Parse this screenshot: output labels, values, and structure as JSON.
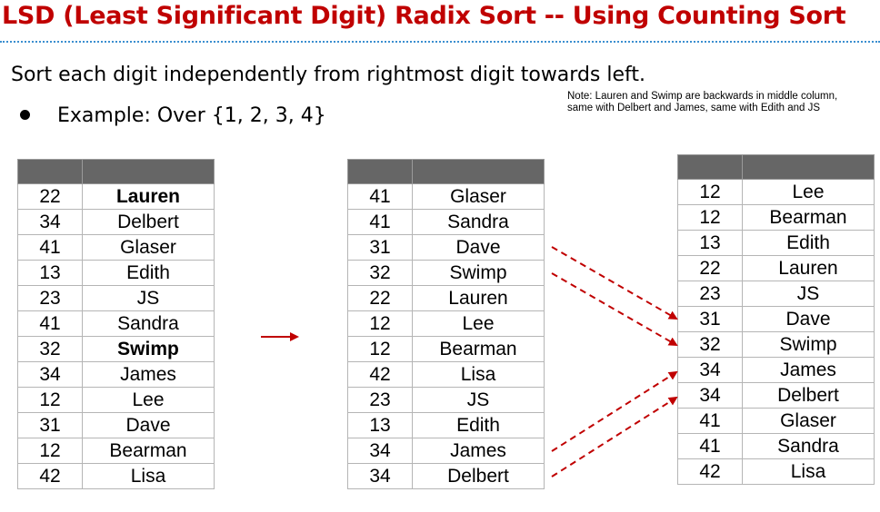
{
  "title": "LSD (Least Significant Digit) Radix Sort -- Using Counting Sort",
  "subtitle": "Sort each digit independently from rightmost digit towards left.",
  "example": "Example: Over {1, 2, 3, 4}",
  "note": "Note: Lauren and Swimp are backwards in middle column, same with Delbert and James, same with Edith and JS",
  "colors": {
    "title": "#c00000",
    "arrow": "#c00000",
    "header": "#666666",
    "rule": "#3b8fd0"
  },
  "tables": [
    {
      "rows": [
        {
          "num": "22",
          "name": "Lauren",
          "bold": true
        },
        {
          "num": "34",
          "name": "Delbert"
        },
        {
          "num": "41",
          "name": "Glaser"
        },
        {
          "num": "13",
          "name": "Edith"
        },
        {
          "num": "23",
          "name": "JS"
        },
        {
          "num": "41",
          "name": "Sandra"
        },
        {
          "num": "32",
          "name": "Swimp",
          "bold": true
        },
        {
          "num": "34",
          "name": "James"
        },
        {
          "num": "12",
          "name": "Lee"
        },
        {
          "num": "31",
          "name": "Dave"
        },
        {
          "num": "12",
          "name": "Bearman"
        },
        {
          "num": "42",
          "name": "Lisa"
        }
      ]
    },
    {
      "rows": [
        {
          "num": "41",
          "name": "Glaser"
        },
        {
          "num": "41",
          "name": "Sandra"
        },
        {
          "num": "31",
          "name": "Dave"
        },
        {
          "num": "32",
          "name": "Swimp"
        },
        {
          "num": "22",
          "name": "Lauren"
        },
        {
          "num": "12",
          "name": "Lee"
        },
        {
          "num": "12",
          "name": "Bearman"
        },
        {
          "num": "42",
          "name": "Lisa"
        },
        {
          "num": "23",
          "name": "JS"
        },
        {
          "num": "13",
          "name": "Edith"
        },
        {
          "num": "34",
          "name": "James"
        },
        {
          "num": "34",
          "name": "Delbert"
        }
      ]
    },
    {
      "rows": [
        {
          "num": "12",
          "name": "Lee"
        },
        {
          "num": "12",
          "name": "Bearman"
        },
        {
          "num": "13",
          "name": "Edith"
        },
        {
          "num": "22",
          "name": "Lauren"
        },
        {
          "num": "23",
          "name": "JS"
        },
        {
          "num": "31",
          "name": "Dave"
        },
        {
          "num": "32",
          "name": "Swimp"
        },
        {
          "num": "34",
          "name": "James"
        },
        {
          "num": "34",
          "name": "Delbert"
        },
        {
          "num": "41",
          "name": "Glaser"
        },
        {
          "num": "41",
          "name": "Sandra"
        },
        {
          "num": "42",
          "name": "Lisa"
        }
      ]
    }
  ]
}
